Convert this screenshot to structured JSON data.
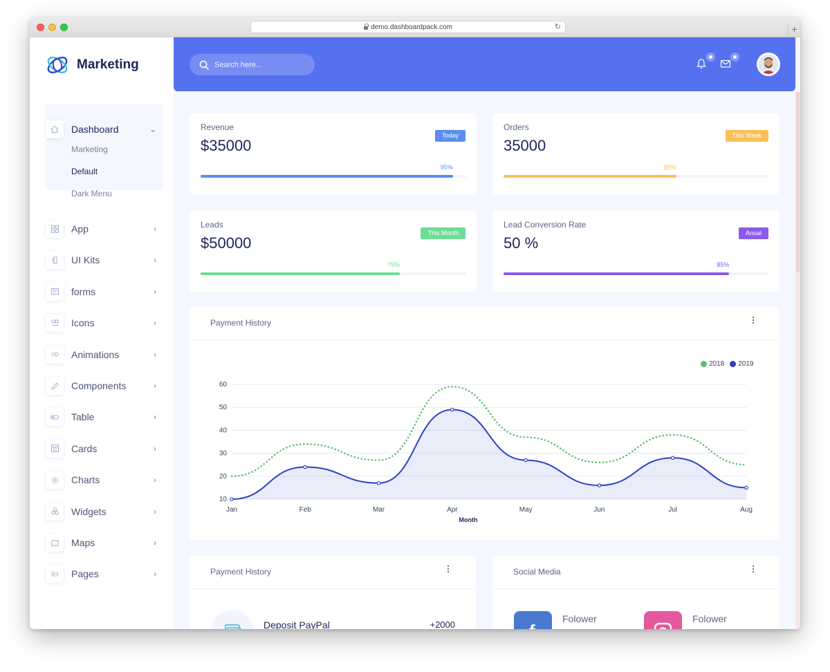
{
  "browser": {
    "url": "demo.dashboardpack.com"
  },
  "brand": {
    "name": "Marketing"
  },
  "sidebar": {
    "dashboard": {
      "label": "Dashboard",
      "children": [
        "Marketing",
        "Default",
        "Dark Menu"
      ],
      "active_child": "Default"
    },
    "items": [
      {
        "label": "App",
        "icon": "grid-icon"
      },
      {
        "label": "UI Kits",
        "icon": "palette-icon"
      },
      {
        "label": "forms",
        "icon": "form-icon"
      },
      {
        "label": "Icons",
        "icon": "shapes-icon"
      },
      {
        "label": "Animations",
        "icon": "animation-icon"
      },
      {
        "label": "Components",
        "icon": "pencil-icon"
      },
      {
        "label": "Table",
        "icon": "toggle-icon"
      },
      {
        "label": "Cards",
        "icon": "calendar-icon"
      },
      {
        "label": "Charts",
        "icon": "gear-icon"
      },
      {
        "label": "Widgets",
        "icon": "widgets-icon"
      },
      {
        "label": "Maps",
        "icon": "map-icon"
      },
      {
        "label": "Pages",
        "icon": "pages-icon"
      }
    ]
  },
  "header": {
    "search_placeholder": "Search here..."
  },
  "stats": [
    {
      "title": "Revenue",
      "value": "$35000",
      "badge": "Today",
      "badge_color": "#5b8def",
      "percent": 95,
      "percent_label": "95%",
      "bar_color": "#5b8def"
    },
    {
      "title": "Orders",
      "value": "35000",
      "badge": "This Week",
      "badge_color": "#f7c05a",
      "percent": 65,
      "percent_label": "65%",
      "bar_color": "#f7c05a"
    },
    {
      "title": "Leads",
      "value": "$50000",
      "badge": "This Month",
      "badge_color": "#6fdc96",
      "percent": 75,
      "percent_label": "75%",
      "bar_color": "#6fdc96"
    },
    {
      "title": "Lead Conversion Rate",
      "value": "50 %",
      "badge": "Anual",
      "badge_color": "#8a5bea",
      "percent": 85,
      "percent_label": "85%",
      "bar_color": "#8a5bea"
    }
  ],
  "payment_chart": {
    "title": "Payment History",
    "chart_data": {
      "type": "line",
      "categories": [
        "Jan",
        "Feb",
        "Mar",
        "Apr",
        "May",
        "Jun",
        "Jul",
        "Aug"
      ],
      "xlabel": "Month",
      "ylabel": "",
      "ylim": [
        10,
        60
      ],
      "yticks": [
        10,
        20,
        30,
        40,
        50,
        60
      ],
      "grid": true,
      "legend": "top-right",
      "series": [
        {
          "name": "2018",
          "values": [
            20,
            34,
            27,
            59,
            37,
            26,
            38,
            25
          ],
          "color": "#5bbf73",
          "style": "dotted"
        },
        {
          "name": "2019",
          "values": [
            10,
            24,
            17,
            49,
            27,
            16,
            28,
            15
          ],
          "color": "#2a41c4",
          "style": "solid-area"
        }
      ]
    }
  },
  "payment_list": {
    "title": "Payment History",
    "items": [
      {
        "label": "Deposit PayPal",
        "value": "+2000"
      }
    ]
  },
  "social": {
    "title": "Social Media",
    "items": [
      {
        "label": "Folower",
        "network": "facebook-icon",
        "color": "#4a78d0"
      },
      {
        "label": "Folower",
        "network": "instagram-icon",
        "color": "#e5589e"
      }
    ]
  }
}
